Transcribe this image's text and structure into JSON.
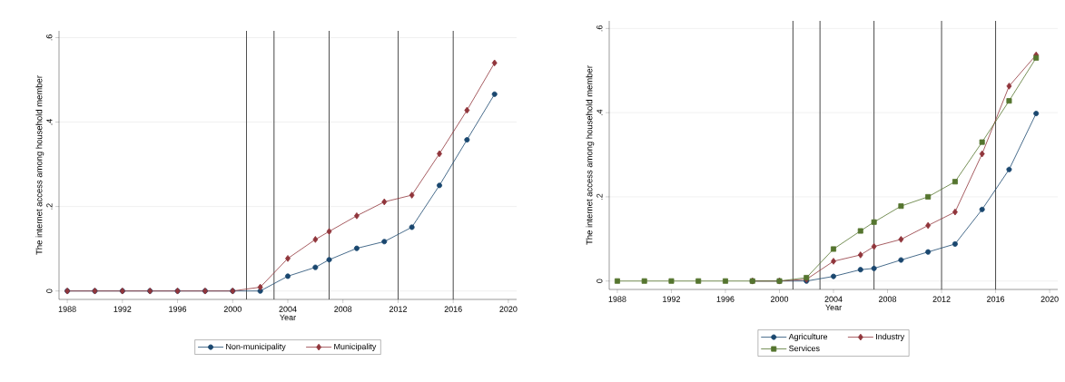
{
  "chart_data": [
    {
      "type": "line",
      "xlabel": "Year",
      "ylabel": "The internet access among household member",
      "x": [
        1988,
        1990,
        1992,
        1994,
        1996,
        1998,
        2000,
        2002,
        2004,
        2006,
        2007,
        2009,
        2011,
        2013,
        2015,
        2017,
        2019
      ],
      "series": [
        {
          "name": "Non-municipality",
          "color": "#1a476f",
          "marker": "circle",
          "values": [
            0,
            0,
            0,
            0,
            0,
            0,
            0,
            0,
            0.035,
            0.056,
            0.074,
            0.101,
            0.117,
            0.151,
            0.25,
            0.358,
            0.466
          ]
        },
        {
          "name": "Municipality",
          "color": "#90353b",
          "marker": "diamond",
          "values": [
            0,
            0,
            0,
            0,
            0,
            0,
            0,
            0.009,
            0.077,
            0.122,
            0.141,
            0.178,
            0.211,
            0.227,
            0.325,
            0.428,
            0.54
          ]
        }
      ],
      "xlim": [
        1987.4,
        2020.6
      ],
      "ylim": [
        -0.02,
        0.616
      ],
      "xticks": [
        1988,
        1992,
        1996,
        2000,
        2004,
        2008,
        2012,
        2016,
        2020
      ],
      "yticks": [
        0,
        {
          "value": 0.2,
          "label": ".2"
        },
        {
          "value": 0.4,
          "label": ".4"
        },
        {
          "value": 0.6,
          "label": ".6"
        }
      ],
      "grid": "y",
      "legend": "bottom",
      "ref_lines": [
        {
          "axis": "x",
          "value": 2001,
          "color": "#333333"
        },
        {
          "axis": "x",
          "value": 2003,
          "color": "#333333"
        },
        {
          "axis": "x",
          "value": 2007,
          "color": "#333333"
        },
        {
          "axis": "x",
          "value": 2012,
          "color": "#333333"
        },
        {
          "axis": "x",
          "value": 2016,
          "color": "#333333"
        }
      ]
    },
    {
      "type": "line",
      "xlabel": "Year",
      "ylabel": "The internet access among household member",
      "x": [
        1988,
        1990,
        1992,
        1994,
        1996,
        1998,
        2000,
        2002,
        2004,
        2006,
        2007,
        2009,
        2011,
        2013,
        2015,
        2017,
        2019
      ],
      "series": [
        {
          "name": "Agriculture",
          "color": "#1a476f",
          "marker": "circle",
          "values": [
            null,
            null,
            null,
            null,
            null,
            0,
            0,
            0,
            0.011,
            0.027,
            0.03,
            0.05,
            0.069,
            0.088,
            0.17,
            0.265,
            0.398
          ]
        },
        {
          "name": "Industry",
          "color": "#90353b",
          "marker": "diamond",
          "values": [
            null,
            null,
            null,
            null,
            null,
            0,
            0,
            0.004,
            0.047,
            0.062,
            0.082,
            0.099,
            0.132,
            0.164,
            0.302,
            0.463,
            0.537
          ]
        },
        {
          "name": "Services",
          "color": "#55752f",
          "marker": "square",
          "values": [
            0,
            0,
            0,
            0,
            0,
            0,
            0,
            0.008,
            0.076,
            0.119,
            0.14,
            0.178,
            0.2,
            0.236,
            0.33,
            0.428,
            0.53
          ]
        }
      ],
      "xlim": [
        1987.4,
        2020.6
      ],
      "ylim": [
        -0.02,
        0.618
      ],
      "xticks": [
        1988,
        1992,
        1996,
        2000,
        2004,
        2008,
        2012,
        2016,
        2020
      ],
      "yticks": [
        0,
        {
          "value": 0.2,
          "label": ".2"
        },
        {
          "value": 0.4,
          "label": ".4"
        },
        {
          "value": 0.6,
          "label": ".6"
        }
      ],
      "grid": "y",
      "legend": "bottom",
      "ref_lines": [
        {
          "axis": "x",
          "value": 2001,
          "color": "#333333"
        },
        {
          "axis": "x",
          "value": 2003,
          "color": "#333333"
        },
        {
          "axis": "x",
          "value": 2007,
          "color": "#333333"
        },
        {
          "axis": "x",
          "value": 2012,
          "color": "#333333"
        },
        {
          "axis": "x",
          "value": 2016,
          "color": "#333333"
        }
      ]
    }
  ]
}
